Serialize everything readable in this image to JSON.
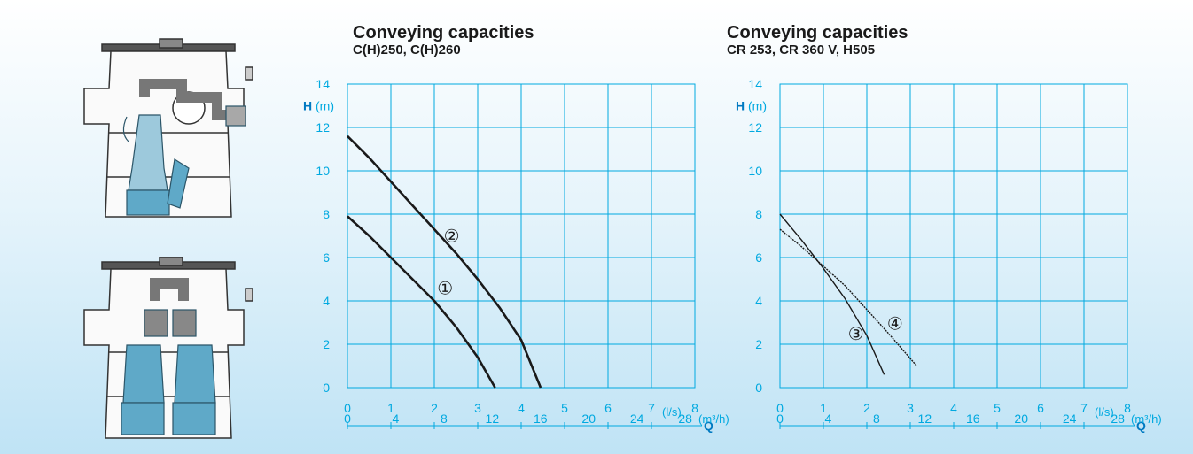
{
  "chart_data": [
    {
      "type": "line",
      "title": "Conveying capacities",
      "subtitle": "C(H)250, C(H)260",
      "ylabel_symbol": "H",
      "ylabel_unit": "(m)",
      "xlabel_symbol": "Q",
      "x_unit_ls": "(l/s)",
      "x_unit_m3h": "(m³/h)",
      "x_ticks_ls": [
        "0",
        "1",
        "2",
        "3",
        "4",
        "5",
        "6",
        "7",
        "8"
      ],
      "x_ticks_m3h": [
        "0",
        "4",
        "8",
        "12",
        "16",
        "20",
        "24",
        "28"
      ],
      "y_ticks": [
        "0",
        "2",
        "4",
        "6",
        "8",
        "10",
        "12",
        "14"
      ],
      "xlim": [
        0,
        8
      ],
      "ylim": [
        0,
        14
      ],
      "grid": true,
      "series": [
        {
          "name": "①",
          "x": [
            0,
            0.5,
            1,
            1.5,
            2,
            2.5,
            3,
            3.4
          ],
          "y": [
            7.9,
            7,
            6,
            5,
            4,
            2.8,
            1.4,
            0
          ],
          "label_at": [
            2.25,
            4.6
          ]
        },
        {
          "name": "②",
          "x": [
            0,
            0.5,
            1,
            1.5,
            2,
            2.5,
            3,
            3.5,
            4,
            4.45
          ],
          "y": [
            11.6,
            10.6,
            9.5,
            8.4,
            7.3,
            6.2,
            5.0,
            3.7,
            2.2,
            0
          ],
          "label_at": [
            2.4,
            7.0
          ]
        }
      ]
    },
    {
      "type": "line",
      "title": "Conveying capacities",
      "subtitle": "CR 253, CR 360 V, H505",
      "ylabel_symbol": "H",
      "ylabel_unit": "(m)",
      "xlabel_symbol": "Q",
      "x_unit_ls": "(l/s)",
      "x_unit_m3h": "(m³/h)",
      "x_ticks_ls": [
        "0",
        "1",
        "2",
        "3",
        "4",
        "5",
        "6",
        "7",
        "8"
      ],
      "x_ticks_m3h": [
        "0",
        "4",
        "8",
        "12",
        "16",
        "20",
        "24",
        "28"
      ],
      "y_ticks": [
        "0",
        "2",
        "4",
        "6",
        "8",
        "10",
        "12",
        "14"
      ],
      "xlim": [
        0,
        8
      ],
      "ylim": [
        0,
        14
      ],
      "grid": true,
      "series": [
        {
          "name": "③",
          "x": [
            0,
            0.5,
            1,
            1.5,
            2,
            2.4
          ],
          "y": [
            8.0,
            6.8,
            5.5,
            4.1,
            2.4,
            0.6
          ],
          "label_at": [
            1.75,
            2.5
          ]
        },
        {
          "name": "④",
          "x": [
            0,
            0.5,
            1,
            1.5,
            2,
            2.5,
            3.15
          ],
          "y": [
            7.3,
            6.5,
            5.6,
            4.7,
            3.6,
            2.5,
            1.0
          ],
          "label_at": [
            2.65,
            2.95
          ]
        }
      ]
    }
  ],
  "colors": {
    "grid": "#00a9e0",
    "tick_text": "#00a9e0",
    "axis_symbol": "#0079c1",
    "curve": "#1a1a1a",
    "pump_blue": "#5fa9c8"
  }
}
